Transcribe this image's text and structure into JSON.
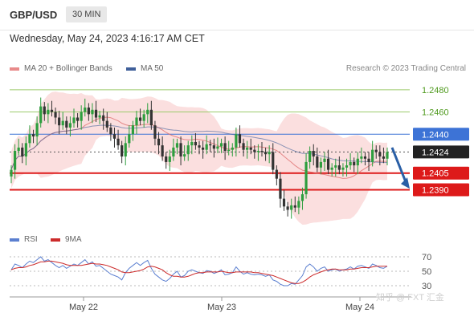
{
  "header": {
    "symbol": "GBP/USD",
    "timeframe": "30 MIN"
  },
  "datetime": "Wednesday, May 24, 2023 4:16:17 AM CET",
  "legend": {
    "bb_label": "MA 20 + Bollinger Bands",
    "ma50_label": "MA 50",
    "copyright": "Research © 2023 Trading Central",
    "bb_color": "#e88a8a",
    "ma50_color": "#3f5f9a"
  },
  "sub_legend": {
    "rsi_label": "RSI",
    "ma9_label": "9MA",
    "rsi_color": "#5b7fd0",
    "ma9_color": "#cc2b2b"
  },
  "watermark": "知乎 @ FXT 汇金",
  "chart_data": [
    {
      "type": "candlestick",
      "ylim": [
        1.2355,
        1.249
      ],
      "x_ticks": [
        "May 22",
        "May 23",
        "May 24"
      ],
      "levels": [
        {
          "label": "1.2480",
          "value": 1.248,
          "kind": "resistance",
          "color": "#9ccb6b",
          "text_color": "#4f9a1e"
        },
        {
          "label": "1.2460",
          "value": 1.246,
          "kind": "resistance",
          "color": "#9ccb6b",
          "text_color": "#4f9a1e"
        },
        {
          "label": "1.2440",
          "value": 1.244,
          "kind": "pivot",
          "color": "#3d73d6",
          "text_color": "#ffffff"
        },
        {
          "label": "1.2424",
          "value": 1.2424,
          "kind": "last",
          "color": "#222222",
          "text_color": "#ffffff"
        },
        {
          "label": "1.2405",
          "value": 1.2405,
          "kind": "support",
          "color": "#dd1a1a",
          "text_color": "#ffffff"
        },
        {
          "label": "1.2390",
          "value": 1.239,
          "kind": "support",
          "color": "#dd1a1a",
          "text_color": "#ffffff"
        }
      ],
      "close": [
        1.2408,
        1.2425,
        1.2428,
        1.242,
        1.2432,
        1.244,
        1.2438,
        1.245,
        1.2465,
        1.2458,
        1.2462,
        1.246,
        1.2455,
        1.2448,
        1.2452,
        1.2446,
        1.245,
        1.2455,
        1.2452,
        1.246,
        1.2464,
        1.2458,
        1.2462,
        1.2455,
        1.2457,
        1.2452,
        1.2446,
        1.244,
        1.2436,
        1.243,
        1.242,
        1.2432,
        1.244,
        1.2448,
        1.2455,
        1.2452,
        1.2458,
        1.2462,
        1.2448,
        1.2436,
        1.243,
        1.242,
        1.2415,
        1.242,
        1.2428,
        1.2432,
        1.242,
        1.2422,
        1.243,
        1.2433,
        1.243,
        1.2428,
        1.2426,
        1.2431,
        1.243,
        1.2427,
        1.2429,
        1.2432,
        1.2425,
        1.2426,
        1.2428,
        1.244,
        1.2432,
        1.2426,
        1.2428,
        1.2426,
        1.2424,
        1.2425,
        1.2424,
        1.2422,
        1.2424,
        1.2408,
        1.24,
        1.2382,
        1.2375,
        1.2372,
        1.2376,
        1.2374,
        1.238,
        1.2386,
        1.2415,
        1.2425,
        1.242,
        1.241,
        1.2415,
        1.2418,
        1.2408,
        1.241,
        1.2412,
        1.2408,
        1.241,
        1.2412,
        1.2415,
        1.2412,
        1.2418,
        1.242,
        1.2418,
        1.2415,
        1.2426,
        1.2424,
        1.242,
        1.2418,
        1.2424
      ]
    },
    {
      "type": "line",
      "title": "RSI",
      "ylim": [
        20,
        80
      ],
      "y_ticks": [
        70,
        50,
        30
      ],
      "series": [
        {
          "name": "RSI",
          "values": [
            52,
            60,
            58,
            55,
            60,
            64,
            62,
            66,
            70,
            64,
            66,
            62,
            58,
            55,
            58,
            54,
            57,
            60,
            58,
            62,
            66,
            60,
            63,
            57,
            58,
            54,
            50,
            46,
            44,
            42,
            38,
            48,
            54,
            58,
            62,
            58,
            62,
            65,
            54,
            46,
            42,
            38,
            36,
            40,
            46,
            50,
            42,
            44,
            50,
            52,
            50,
            48,
            47,
            51,
            50,
            47,
            49,
            52,
            45,
            46,
            48,
            56,
            50,
            46,
            48,
            46,
            45,
            46,
            45,
            43,
            45,
            38,
            36,
            32,
            30,
            30,
            33,
            32,
            38,
            44,
            56,
            60,
            56,
            50,
            54,
            56,
            50,
            52,
            53,
            50,
            52,
            53,
            56,
            53,
            57,
            58,
            56,
            54,
            60,
            58,
            55,
            54,
            57
          ]
        },
        {
          "name": "9MA",
          "values": [
            52,
            54,
            55,
            55,
            56,
            58,
            59,
            61,
            63,
            63,
            64,
            64,
            63,
            62,
            61,
            59,
            58,
            58,
            58,
            58,
            59,
            60,
            61,
            60,
            60,
            59,
            58,
            56,
            54,
            52,
            49,
            48,
            48,
            49,
            50,
            51,
            53,
            56,
            57,
            56,
            54,
            52,
            48,
            45,
            43,
            43,
            42,
            42,
            43,
            45,
            47,
            48,
            48,
            49,
            49,
            49,
            49,
            50,
            49,
            48,
            48,
            49,
            49,
            49,
            49,
            49,
            48,
            48,
            47,
            46,
            45,
            44,
            42,
            40,
            38,
            36,
            34,
            33,
            33,
            35,
            38,
            42,
            45,
            47,
            49,
            51,
            52,
            53,
            53,
            52,
            52,
            52,
            53,
            53,
            54,
            55,
            55,
            55,
            56,
            57,
            57,
            57,
            57
          ]
        }
      ]
    }
  ]
}
